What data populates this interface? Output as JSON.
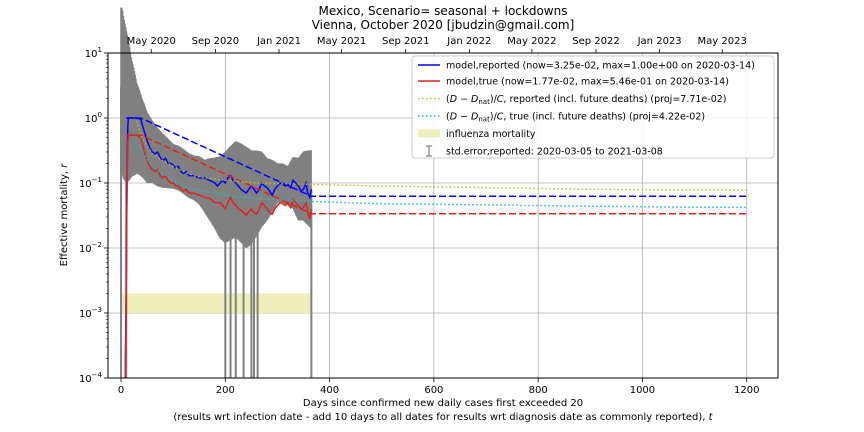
{
  "chart_data": {
    "type": "line",
    "title": "Mexico, Scenario= seasonal + lockdowns",
    "subtitle": "Vienna, October 2020 [jbudzin@gmail.com]",
    "xlabel": "Days since confirmed new daily cases first exceeded 20",
    "xlabel2_prefix": "(results wrt infection date - add 10 days to all dates for results wrt diagnosis date as commonly reported), ",
    "xlabel2_var": "t",
    "ylabel_prefix": "Effective mortality, ",
    "ylabel_var": "r",
    "y_scale": "log",
    "xlim": [
      -25,
      1260
    ],
    "ylim": [
      0.0001,
      10
    ],
    "grid": true,
    "legend_position": "top-right",
    "x_ticks": [
      {
        "value": 0,
        "label": "0"
      },
      {
        "value": 200,
        "label": "200"
      },
      {
        "value": 400,
        "label": "400"
      },
      {
        "value": 600,
        "label": "600"
      },
      {
        "value": 800,
        "label": "800"
      },
      {
        "value": 1000,
        "label": "1000"
      },
      {
        "value": 1200,
        "label": "1200"
      }
    ],
    "y_ticks": [
      {
        "value": 0.0001,
        "base": "10",
        "exp": "−4"
      },
      {
        "value": 0.001,
        "base": "10",
        "exp": "−3"
      },
      {
        "value": 0.01,
        "base": "10",
        "exp": "−2"
      },
      {
        "value": 0.1,
        "base": "10",
        "exp": "−1"
      },
      {
        "value": 1,
        "base": "10",
        "exp": "0"
      },
      {
        "value": 10,
        "base": "10",
        "exp": "1"
      }
    ],
    "top_axis_ticks": [
      {
        "value": 58,
        "label": "May 2020"
      },
      {
        "value": 181,
        "label": "Sep 2020"
      },
      {
        "value": 303,
        "label": "Jan 2021"
      },
      {
        "value": 423,
        "label": "May 2021"
      },
      {
        "value": 546,
        "label": "Sep 2021"
      },
      {
        "value": 668,
        "label": "Jan 2022"
      },
      {
        "value": 788,
        "label": "May 2022"
      },
      {
        "value": 911,
        "label": "Sep 2022"
      },
      {
        "value": 1033,
        "label": "Jan 2023"
      },
      {
        "value": 1153,
        "label": "May 2023"
      }
    ],
    "influenza_band": {
      "x": [
        0,
        365
      ],
      "y": [
        0.001,
        0.002
      ],
      "color": "#eeeebb"
    },
    "errorbars": {
      "color": "#808080",
      "center": [
        [
          0,
          3.0
        ],
        [
          5,
          2.0
        ],
        [
          10,
          1.5
        ],
        [
          20,
          1.0
        ],
        [
          30,
          0.7
        ],
        [
          40,
          0.5
        ],
        [
          50,
          0.35
        ],
        [
          60,
          0.3
        ],
        [
          70,
          0.25
        ],
        [
          80,
          0.22
        ],
        [
          90,
          0.2
        ],
        [
          100,
          0.18
        ],
        [
          110,
          0.17
        ],
        [
          120,
          0.15
        ],
        [
          130,
          0.13
        ],
        [
          140,
          0.12
        ],
        [
          150,
          0.11
        ],
        [
          160,
          0.09
        ],
        [
          170,
          0.08
        ],
        [
          180,
          0.07
        ],
        [
          190,
          0.06
        ],
        [
          200,
          0.06
        ],
        [
          210,
          0.07
        ],
        [
          220,
          0.08
        ],
        [
          230,
          0.07
        ],
        [
          240,
          0.06
        ],
        [
          250,
          0.06
        ],
        [
          260,
          0.07
        ],
        [
          270,
          0.08
        ],
        [
          280,
          0.08
        ],
        [
          290,
          0.09
        ],
        [
          300,
          0.1
        ],
        [
          310,
          0.1
        ],
        [
          320,
          0.09
        ],
        [
          330,
          0.1
        ],
        [
          340,
          0.08
        ],
        [
          350,
          0.09
        ],
        [
          365,
          0.08
        ]
      ],
      "halfwidth_factor": [
        [
          0,
          20
        ],
        [
          10,
          15
        ],
        [
          20,
          8
        ],
        [
          30,
          5
        ],
        [
          40,
          4
        ],
        [
          60,
          3
        ],
        [
          100,
          2.2
        ],
        [
          140,
          2.2
        ],
        [
          160,
          2.5
        ],
        [
          180,
          3.5
        ],
        [
          200,
          5
        ],
        [
          240,
          6
        ],
        [
          280,
          3
        ],
        [
          300,
          2
        ],
        [
          320,
          2
        ],
        [
          340,
          3
        ],
        [
          365,
          4
        ]
      ],
      "spikes_to_floor": [
        0,
        10,
        200,
        210,
        220,
        235,
        250,
        255,
        262,
        365
      ]
    },
    "series": [
      {
        "name": "model,reported (now=3.25e-02, max=1.00e+00 on 2020-03-14)",
        "color": "#0000ff",
        "style": "solid",
        "points": [
          [
            8,
            0.0001
          ],
          [
            10,
            0.002
          ],
          [
            11,
            0.05
          ],
          [
            12,
            0.3
          ],
          [
            13,
            0.7
          ],
          [
            14,
            1.0
          ],
          [
            20,
            1.0
          ],
          [
            30,
            1.0
          ],
          [
            38,
            0.95
          ],
          [
            45,
            0.6
          ],
          [
            50,
            0.45
          ],
          [
            55,
            0.35
          ],
          [
            60,
            0.3
          ],
          [
            65,
            0.28
          ],
          [
            70,
            0.3
          ],
          [
            75,
            0.25
          ],
          [
            80,
            0.22
          ],
          [
            85,
            0.24
          ],
          [
            90,
            0.2
          ],
          [
            95,
            0.2
          ],
          [
            100,
            0.19
          ],
          [
            105,
            0.17
          ],
          [
            110,
            0.18
          ],
          [
            115,
            0.15
          ],
          [
            120,
            0.14
          ],
          [
            125,
            0.15
          ],
          [
            130,
            0.13
          ],
          [
            140,
            0.13
          ],
          [
            150,
            0.12
          ],
          [
            160,
            0.12
          ],
          [
            170,
            0.11
          ],
          [
            180,
            0.1
          ],
          [
            185,
            0.09
          ],
          [
            190,
            0.1
          ],
          [
            195,
            0.11
          ],
          [
            200,
            0.1
          ],
          [
            205,
            0.12
          ],
          [
            210,
            0.13
          ],
          [
            215,
            0.11
          ],
          [
            220,
            0.1
          ],
          [
            225,
            0.09
          ],
          [
            230,
            0.08
          ],
          [
            240,
            0.07
          ],
          [
            245,
            0.08
          ],
          [
            250,
            0.09
          ],
          [
            255,
            0.08
          ],
          [
            260,
            0.07
          ],
          [
            265,
            0.08
          ],
          [
            270,
            0.1
          ],
          [
            275,
            0.09
          ],
          [
            280,
            0.085
          ],
          [
            285,
            0.075
          ],
          [
            290,
            0.065
          ],
          [
            295,
            0.08
          ],
          [
            300,
            0.09
          ],
          [
            305,
            0.1
          ],
          [
            310,
            0.095
          ],
          [
            315,
            0.09
          ],
          [
            320,
            0.095
          ],
          [
            325,
            0.085
          ],
          [
            330,
            0.11
          ],
          [
            335,
            0.1
          ],
          [
            340,
            0.09
          ],
          [
            345,
            0.075
          ],
          [
            350,
            0.08
          ],
          [
            355,
            0.1
          ],
          [
            358,
            0.07
          ],
          [
            362,
            0.06
          ],
          [
            365,
            0.08
          ]
        ]
      },
      {
        "name": "model,true (now=1.77e-02, max=5.46e-01 on 2020-03-14)",
        "color": "#dd2222",
        "style": "solid",
        "points": [
          [
            8,
            0.0001
          ],
          [
            10,
            0.001
          ],
          [
            11,
            0.03
          ],
          [
            12,
            0.15
          ],
          [
            13,
            0.4
          ],
          [
            14,
            0.546
          ],
          [
            20,
            0.546
          ],
          [
            30,
            0.546
          ],
          [
            38,
            0.5
          ],
          [
            45,
            0.3
          ],
          [
            50,
            0.22
          ],
          [
            55,
            0.18
          ],
          [
            60,
            0.16
          ],
          [
            65,
            0.15
          ],
          [
            70,
            0.16
          ],
          [
            75,
            0.13
          ],
          [
            80,
            0.12
          ],
          [
            85,
            0.13
          ],
          [
            90,
            0.11
          ],
          [
            95,
            0.1
          ],
          [
            100,
            0.1
          ],
          [
            105,
            0.09
          ],
          [
            110,
            0.09
          ],
          [
            115,
            0.08
          ],
          [
            120,
            0.075
          ],
          [
            125,
            0.08
          ],
          [
            130,
            0.07
          ],
          [
            140,
            0.07
          ],
          [
            150,
            0.065
          ],
          [
            160,
            0.06
          ],
          [
            170,
            0.058
          ],
          [
            180,
            0.05
          ],
          [
            190,
            0.05
          ],
          [
            195,
            0.045
          ],
          [
            200,
            0.04
          ],
          [
            205,
            0.05
          ],
          [
            210,
            0.06
          ],
          [
            215,
            0.05
          ],
          [
            220,
            0.045
          ],
          [
            225,
            0.04
          ],
          [
            230,
            0.038
          ],
          [
            240,
            0.032
          ],
          [
            245,
            0.036
          ],
          [
            250,
            0.04
          ],
          [
            255,
            0.035
          ],
          [
            260,
            0.033
          ],
          [
            265,
            0.04
          ],
          [
            270,
            0.05
          ],
          [
            275,
            0.045
          ],
          [
            280,
            0.04
          ],
          [
            285,
            0.035
          ],
          [
            290,
            0.033
          ],
          [
            295,
            0.04
          ],
          [
            300,
            0.045
          ],
          [
            305,
            0.05
          ],
          [
            310,
            0.048
          ],
          [
            315,
            0.045
          ],
          [
            320,
            0.05
          ],
          [
            325,
            0.042
          ],
          [
            330,
            0.055
          ],
          [
            335,
            0.05
          ],
          [
            340,
            0.045
          ],
          [
            345,
            0.04
          ],
          [
            350,
            0.042
          ],
          [
            355,
            0.05
          ],
          [
            358,
            0.035
          ],
          [
            362,
            0.028
          ],
          [
            365,
            0.04
          ]
        ]
      },
      {
        "name": "model,reported projection",
        "color": "#0000ff",
        "style": "dashed",
        "points": [
          [
            10,
            1.0
          ],
          [
            38,
            1.0
          ],
          [
            365,
            0.0625
          ],
          [
            1200,
            0.0625
          ]
        ]
      },
      {
        "name": "model,true projection",
        "color": "#dd2222",
        "style": "dashed",
        "points": [
          [
            10,
            0.546
          ],
          [
            38,
            0.546
          ],
          [
            365,
            0.0337
          ],
          [
            1200,
            0.0337
          ]
        ]
      },
      {
        "name": "(D-D_nat)/C, reported (incl. future deaths) (proj=7.71e-02)",
        "legend_parts": [
          "(",
          "D",
          " − ",
          "D",
          "nat",
          ")/",
          "C",
          ", reported (incl. future deaths) (proj=7.71e-02)"
        ],
        "color": "#bcbd22",
        "style": "dotted",
        "points": [
          [
            30,
            0.9
          ],
          [
            40,
            0.5
          ],
          [
            60,
            0.28
          ],
          [
            80,
            0.22
          ],
          [
            100,
            0.18
          ],
          [
            120,
            0.15
          ],
          [
            140,
            0.13
          ],
          [
            160,
            0.12
          ],
          [
            180,
            0.115
          ],
          [
            200,
            0.11
          ],
          [
            230,
            0.105
          ],
          [
            260,
            0.1
          ],
          [
            300,
            0.098
          ],
          [
            365,
            0.095
          ],
          [
            500,
            0.09
          ],
          [
            700,
            0.085
          ],
          [
            900,
            0.08
          ],
          [
            1100,
            0.078
          ],
          [
            1200,
            0.0771
          ]
        ]
      },
      {
        "name": "(D-D_nat)/C, true (incl. future deaths) (proj=4.22e-02)",
        "legend_parts": [
          "(",
          "D",
          " − ",
          "D",
          "nat",
          ")/",
          "C",
          ", true (incl. future deaths) (proj=4.22e-02)"
        ],
        "color": "#17becf",
        "style": "dotted",
        "points": [
          [
            30,
            0.5
          ],
          [
            40,
            0.3
          ],
          [
            60,
            0.18
          ],
          [
            80,
            0.14
          ],
          [
            100,
            0.11
          ],
          [
            120,
            0.09
          ],
          [
            140,
            0.08
          ],
          [
            160,
            0.075
          ],
          [
            180,
            0.07
          ],
          [
            200,
            0.065
          ],
          [
            230,
            0.06
          ],
          [
            260,
            0.058
          ],
          [
            300,
            0.055
          ],
          [
            365,
            0.052
          ],
          [
            500,
            0.048
          ],
          [
            700,
            0.046
          ],
          [
            900,
            0.044
          ],
          [
            1100,
            0.0425
          ],
          [
            1200,
            0.0422
          ]
        ]
      }
    ],
    "legend": [
      {
        "key": "reported",
        "type": "line",
        "color": "#0000ff",
        "style": "solid",
        "label": "model,reported (now=3.25e-02, max=1.00e+00 on 2020-03-14)"
      },
      {
        "key": "true",
        "type": "line",
        "color": "#dd2222",
        "style": "solid",
        "label": "model,true (now=1.77e-02, max=5.46e-01 on 2020-03-14)"
      },
      {
        "key": "dr",
        "type": "line",
        "color": "#bcbd22",
        "style": "dotted",
        "parts": [
          "(",
          "D",
          " − ",
          "D",
          "nat",
          ")/",
          "C",
          ", reported (incl. future deaths) (proj=7.71e-02)"
        ]
      },
      {
        "key": "dt",
        "type": "line",
        "color": "#17becf",
        "style": "dotted",
        "parts": [
          "(",
          "D",
          " − ",
          "D",
          "nat",
          ")/",
          "C",
          ", true (incl. future deaths) (proj=4.22e-02)"
        ]
      },
      {
        "key": "flu",
        "type": "patch",
        "color": "#eeeebb",
        "label": "influenza mortality"
      },
      {
        "key": "err",
        "type": "errorbar",
        "color": "#808080",
        "label": "std.error,reported: 2020-03-05 to 2021-03-08"
      }
    ]
  }
}
